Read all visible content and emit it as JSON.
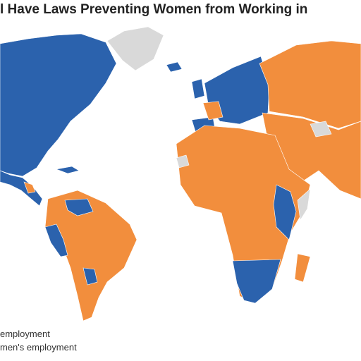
{
  "title": "l Have Laws Preventing Women from Working in",
  "legend": [
    {
      "label": "employment",
      "color": "#2b62ad"
    },
    {
      "label": "men's employment",
      "color": "#f28e3d"
    }
  ]
}
